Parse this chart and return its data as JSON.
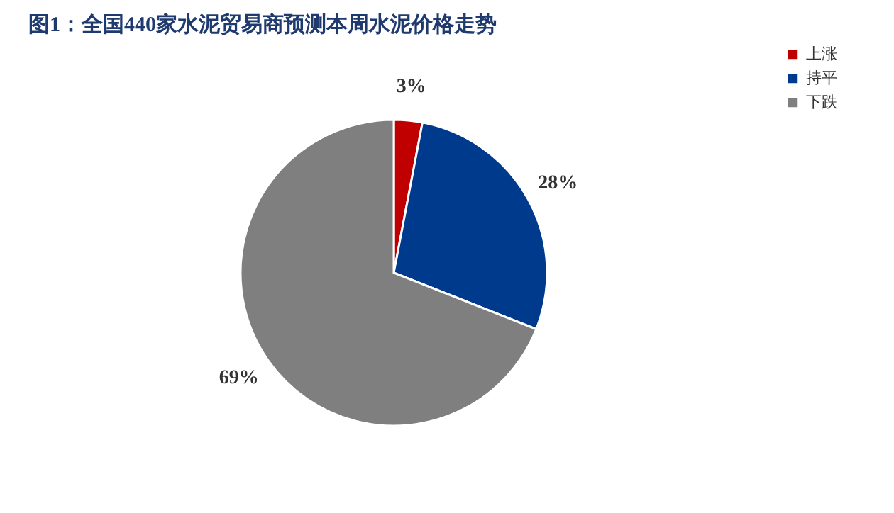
{
  "chart_data": {
    "type": "pie",
    "title": "图1：全国440家水泥贸易商预测本周水泥价格走势",
    "categories": [
      "上涨",
      "持平",
      "下跌"
    ],
    "values": [
      3,
      28,
      69
    ],
    "colors": [
      "#c00000",
      "#003a8c",
      "#7f7f7f"
    ],
    "value_labels": [
      "3%",
      "28%",
      "69%"
    ],
    "legend": "right"
  }
}
